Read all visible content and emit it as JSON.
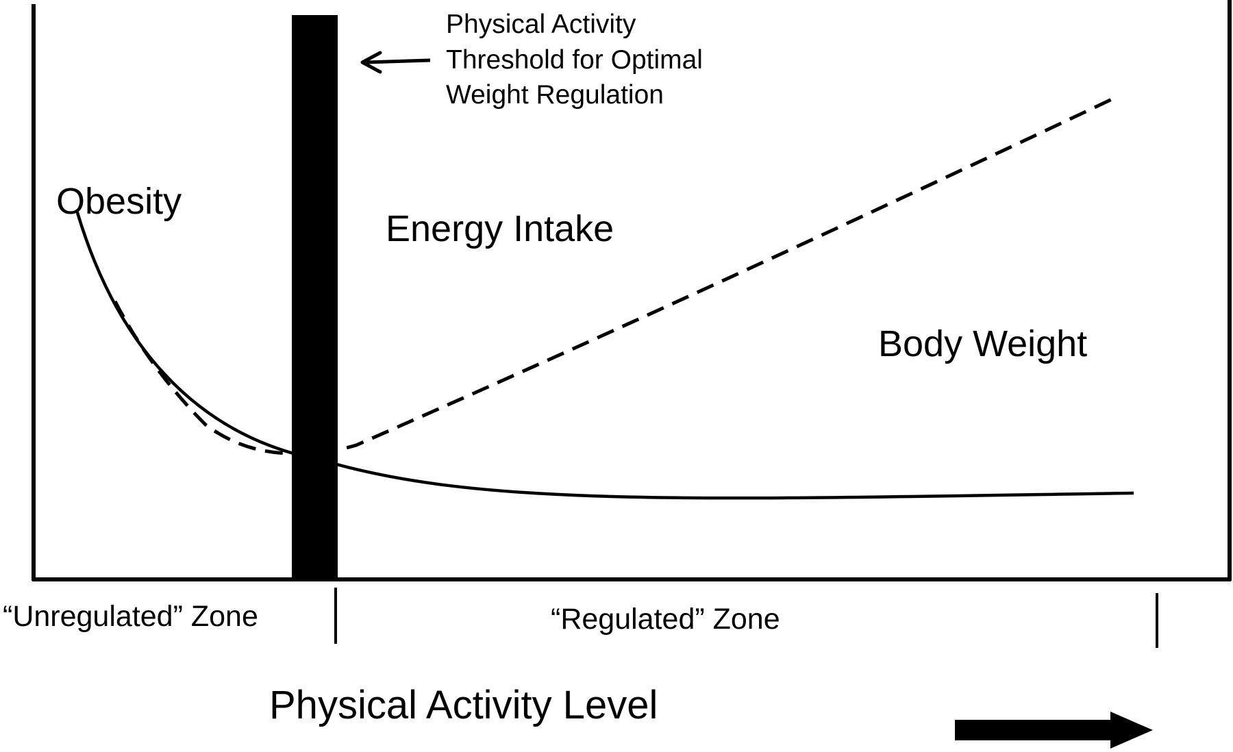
{
  "labels": {
    "threshold_line1": "Physical Activity",
    "threshold_line2": "Threshold for Optimal",
    "threshold_line3": "Weight Regulation",
    "obesity": "Obesity",
    "energy_intake": "Energy Intake",
    "body_weight": "Body Weight",
    "unregulated_zone": "“Unregulated” Zone",
    "regulated_zone": "“Regulated” Zone",
    "x_axis": "Physical Activity Level"
  },
  "colors": {
    "ink": "#000000",
    "background": "#ffffff"
  },
  "curves": {
    "body_weight_style": "solid",
    "energy_intake_style": "dashed"
  },
  "icons": {
    "threshold_pointer": "arrow-left-icon",
    "direction": "arrow-right-icon"
  }
}
